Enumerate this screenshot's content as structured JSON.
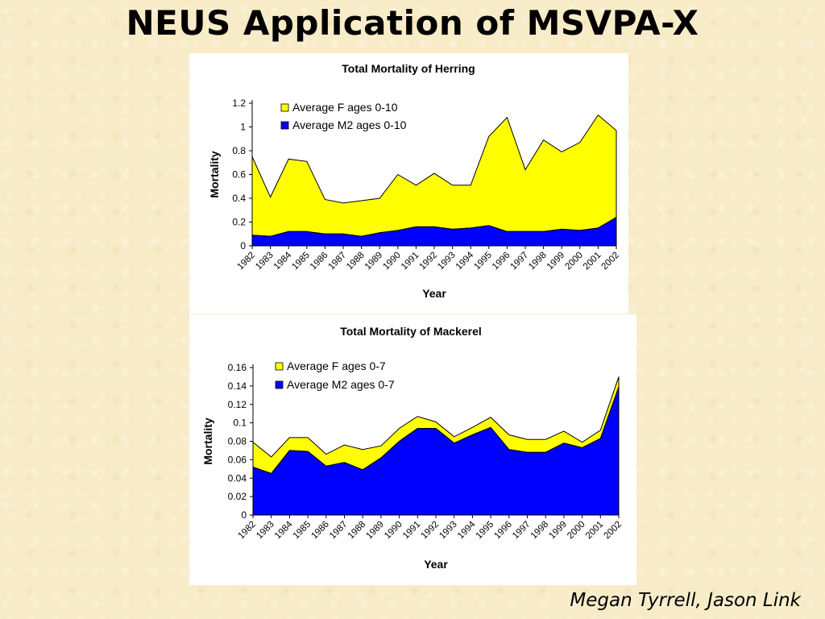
{
  "slide": {
    "title": "NEUS Application of MSVPA-X",
    "authors": "Megan Tyrrell, Jason Link"
  },
  "chart_data": [
    {
      "type": "area",
      "stacked": true,
      "title": "Total Mortality of Herring",
      "xlabel": "Year",
      "ylabel": "Mortality",
      "x": [
        "1982",
        "1983",
        "1984",
        "1985",
        "1986",
        "1987",
        "1988",
        "1989",
        "1990",
        "1991",
        "1992",
        "1993",
        "1994",
        "1995",
        "1996",
        "1997",
        "1998",
        "1999",
        "2000",
        "2001",
        "2002"
      ],
      "ylim": [
        0,
        1.2
      ],
      "yticks": [
        0,
        0.2,
        0.4,
        0.6,
        0.8,
        1,
        1.2
      ],
      "ytick_labels": [
        "0",
        "0.2",
        "0.4",
        "0.6",
        "0.8",
        "1",
        "1.2"
      ],
      "grid": false,
      "legend_position": "top-left",
      "series": [
        {
          "name": "Average M2 ages 0-10",
          "color": "#0000ff",
          "values": [
            0.09,
            0.08,
            0.12,
            0.12,
            0.1,
            0.1,
            0.08,
            0.11,
            0.13,
            0.16,
            0.16,
            0.14,
            0.15,
            0.17,
            0.12,
            0.12,
            0.12,
            0.14,
            0.13,
            0.15,
            0.24
          ]
        },
        {
          "name": "Average F ages 0-10",
          "color": "#ffff00",
          "values": [
            0.66,
            0.33,
            0.61,
            0.59,
            0.29,
            0.26,
            0.3,
            0.29,
            0.47,
            0.35,
            0.45,
            0.37,
            0.36,
            0.75,
            0.96,
            0.52,
            0.77,
            0.65,
            0.74,
            0.95,
            0.73
          ]
        }
      ]
    },
    {
      "type": "area",
      "stacked": true,
      "title": "Total Mortality of Mackerel",
      "xlabel": "Year",
      "ylabel": "Mortality",
      "x": [
        "1982",
        "1983",
        "1984",
        "1985",
        "1986",
        "1987",
        "1988",
        "1989",
        "1990",
        "1991",
        "1992",
        "1993",
        "1994",
        "1995",
        "1996",
        "1997",
        "1998",
        "1999",
        "2000",
        "2001",
        "2002"
      ],
      "ylim": [
        0,
        0.16
      ],
      "yticks": [
        0,
        0.02,
        0.04,
        0.06,
        0.08,
        0.1,
        0.12,
        0.14,
        0.16
      ],
      "ytick_labels": [
        "0",
        "0.02",
        "0.04",
        "0.06",
        "0.08",
        "0.1",
        "0.12",
        "0.14",
        "0.16"
      ],
      "grid": false,
      "legend_position": "top-left",
      "series": [
        {
          "name": "Average M2 ages 0-7",
          "color": "#0000ff",
          "values": [
            0.052,
            0.045,
            0.07,
            0.069,
            0.053,
            0.057,
            0.049,
            0.062,
            0.08,
            0.094,
            0.094,
            0.078,
            0.087,
            0.095,
            0.071,
            0.068,
            0.068,
            0.078,
            0.073,
            0.083,
            0.139
          ]
        },
        {
          "name": "Average F ages 0-7",
          "color": "#ffff00",
          "values": [
            0.027,
            0.018,
            0.014,
            0.015,
            0.013,
            0.019,
            0.022,
            0.013,
            0.014,
            0.013,
            0.007,
            0.007,
            0.008,
            0.011,
            0.016,
            0.014,
            0.014,
            0.013,
            0.006,
            0.009,
            0.011
          ]
        }
      ]
    }
  ]
}
